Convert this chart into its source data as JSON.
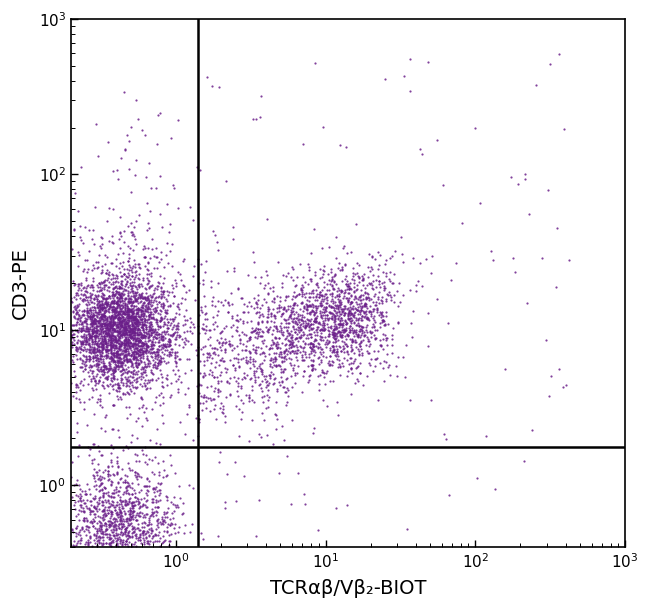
{
  "xlabel": "TCRαβ/Vβ₂-BIOT",
  "ylabel": "CD3-PE",
  "xlim": [
    0.2,
    1000
  ],
  "ylim": [
    0.4,
    1000
  ],
  "dot_color": "#6B1F8A",
  "dot_size": 2.5,
  "dot_alpha": 0.85,
  "gate_x": 1.4,
  "gate_y": 1.75,
  "background_color": "#ffffff",
  "xlabel_fontsize": 14,
  "ylabel_fontsize": 14,
  "tick_fontsize": 11
}
